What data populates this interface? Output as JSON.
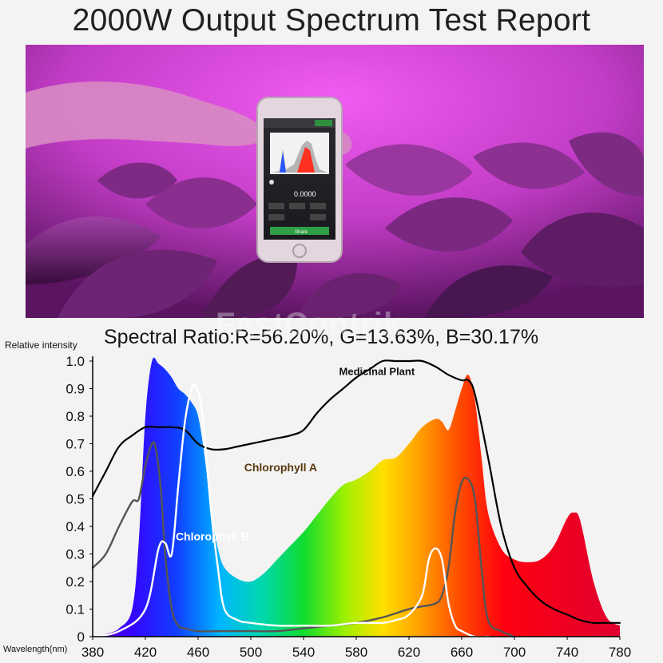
{
  "page": {
    "title": "2000W Output Spectrum Test Report",
    "watermark": "FastContrik"
  },
  "photo": {
    "phone_screen": {
      "value_readout": "0.0000",
      "button_label": "Share"
    }
  },
  "chart_data": {
    "type": "area",
    "title": "Spectral Ratio:R=56.20%, G=13.63%, B=30.17%",
    "xlabel": "Wavelength(nm)",
    "ylabel": "Relative intensity",
    "xlim": [
      380,
      780
    ],
    "ylim": [
      0,
      1.0
    ],
    "xticks": [
      380,
      420,
      460,
      500,
      540,
      580,
      620,
      660,
      700,
      740,
      780
    ],
    "yticks": [
      0,
      0.1,
      0.2,
      0.3,
      0.4,
      0.5,
      0.6,
      0.7,
      0.8,
      0.9,
      1.0
    ],
    "ytick_labels": [
      "0",
      "0.1",
      "0.2",
      "0.3",
      "0.4",
      "0.5",
      "0.6",
      "0.7",
      "0.8",
      "0.9",
      "1.0"
    ],
    "grid": false,
    "spectrum": {
      "x": [
        380,
        390,
        400,
        410,
        415,
        420,
        425,
        430,
        435,
        440,
        445,
        450,
        455,
        460,
        465,
        470,
        475,
        480,
        490,
        500,
        510,
        520,
        530,
        540,
        550,
        560,
        570,
        580,
        590,
        600,
        610,
        620,
        630,
        640,
        645,
        650,
        655,
        660,
        665,
        670,
        675,
        680,
        690,
        700,
        710,
        720,
        730,
        740,
        745,
        750,
        760,
        770,
        780
      ],
      "y": [
        0.0,
        0.01,
        0.03,
        0.1,
        0.35,
        0.8,
        1.0,
        0.99,
        0.97,
        0.94,
        0.9,
        0.88,
        0.85,
        0.8,
        0.65,
        0.45,
        0.32,
        0.25,
        0.21,
        0.2,
        0.23,
        0.28,
        0.33,
        0.38,
        0.44,
        0.5,
        0.55,
        0.57,
        0.6,
        0.64,
        0.65,
        0.7,
        0.76,
        0.79,
        0.78,
        0.75,
        0.82,
        0.9,
        0.95,
        0.86,
        0.65,
        0.45,
        0.32,
        0.28,
        0.27,
        0.28,
        0.33,
        0.43,
        0.45,
        0.42,
        0.2,
        0.07,
        0.04
      ]
    },
    "series": [
      {
        "name": "Medicinal Plant",
        "x": [
          380,
          390,
          400,
          410,
          420,
          430,
          440,
          450,
          460,
          470,
          480,
          490,
          500,
          510,
          520,
          530,
          540,
          550,
          560,
          570,
          580,
          590,
          600,
          610,
          620,
          630,
          640,
          650,
          660,
          665,
          670,
          680,
          690,
          700,
          710,
          720,
          730,
          740,
          750,
          760,
          770,
          780
        ],
        "y": [
          0.51,
          0.6,
          0.69,
          0.73,
          0.76,
          0.76,
          0.76,
          0.75,
          0.7,
          0.68,
          0.68,
          0.69,
          0.7,
          0.71,
          0.72,
          0.73,
          0.75,
          0.81,
          0.86,
          0.9,
          0.94,
          0.97,
          1.0,
          1.0,
          1.0,
          1.0,
          0.98,
          0.95,
          0.93,
          0.93,
          0.88,
          0.65,
          0.4,
          0.25,
          0.18,
          0.13,
          0.1,
          0.08,
          0.06,
          0.05,
          0.05,
          0.05
        ],
        "color": "#000000"
      },
      {
        "name": "Chlorophyll A",
        "x": [
          380,
          390,
          400,
          410,
          415,
          420,
          425,
          428,
          432,
          435,
          440,
          445,
          450,
          460,
          480,
          500,
          520,
          540,
          560,
          580,
          600,
          620,
          630,
          640,
          645,
          650,
          655,
          660,
          665,
          670,
          675,
          680,
          690,
          700
        ],
        "y": [
          0.25,
          0.3,
          0.4,
          0.49,
          0.5,
          0.62,
          0.7,
          0.68,
          0.52,
          0.3,
          0.1,
          0.04,
          0.03,
          0.02,
          0.02,
          0.02,
          0.02,
          0.03,
          0.04,
          0.05,
          0.07,
          0.1,
          0.11,
          0.12,
          0.15,
          0.25,
          0.45,
          0.56,
          0.57,
          0.5,
          0.25,
          0.06,
          0.02,
          0.0
        ],
        "color": "#555555"
      },
      {
        "name": "Chlorophyll B",
        "x": [
          380,
          400,
          420,
          430,
          435,
          440,
          445,
          450,
          455,
          458,
          462,
          465,
          470,
          475,
          480,
          490,
          500,
          520,
          540,
          560,
          580,
          600,
          610,
          620,
          630,
          635,
          640,
          645,
          650,
          655,
          660,
          670,
          680
        ],
        "y": [
          0.0,
          0.02,
          0.1,
          0.32,
          0.34,
          0.3,
          0.55,
          0.78,
          0.9,
          0.91,
          0.85,
          0.72,
          0.45,
          0.25,
          0.1,
          0.06,
          0.05,
          0.04,
          0.04,
          0.04,
          0.05,
          0.05,
          0.06,
          0.08,
          0.15,
          0.28,
          0.32,
          0.28,
          0.12,
          0.04,
          0.02,
          0.0,
          0.0
        ],
        "color": "#ffffff"
      }
    ],
    "annotations": [
      {
        "text": "Medicinal Plant",
        "x": 567,
        "y": 0.95
      },
      {
        "text": "Chlorophyll A",
        "x": 495,
        "y": 0.6
      },
      {
        "text": "Chlorophyll B",
        "x": 443,
        "y": 0.35
      }
    ]
  }
}
